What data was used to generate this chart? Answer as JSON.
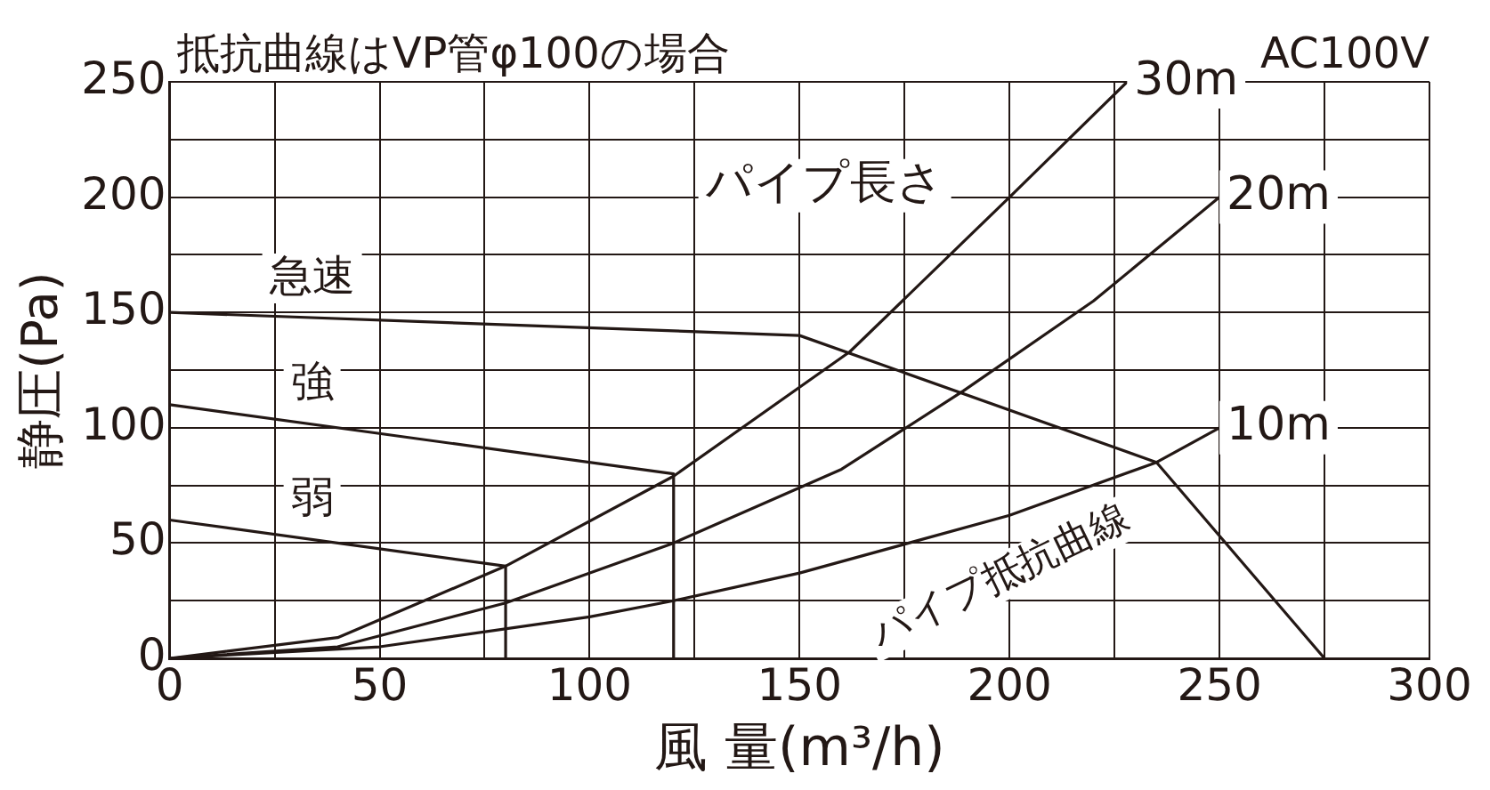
{
  "chart_data": {
    "type": "line",
    "title": "抵抗曲線はVP管φ100の場合",
    "subtitle": "AC100V",
    "xlabel": "風 量(m³/h)",
    "ylabel": "静圧(Pa)",
    "xlim": [
      0,
      300
    ],
    "xticks": [
      0,
      {
        "value": 25,
        "label": null
      },
      50,
      {
        "value": 75,
        "label": null
      },
      100,
      {
        "value": 125,
        "label": null
      },
      150,
      {
        "value": 175,
        "label": null
      },
      200,
      {
        "value": 225,
        "label": null
      },
      250,
      {
        "value": 275,
        "label": null
      },
      300
    ],
    "ylim": [
      0,
      250
    ],
    "yticks": [
      0,
      {
        "value": 25,
        "label": null
      },
      50,
      {
        "value": 75,
        "label": null
      },
      100,
      {
        "value": 125,
        "label": null
      },
      150,
      {
        "value": 175,
        "label": null
      },
      200,
      {
        "value": 225,
        "label": null
      },
      250
    ],
    "grid": true,
    "legend": false,
    "marker": "none",
    "line_style": "solid",
    "series": [
      {
        "name": "急速",
        "color": "#231815",
        "x": [
          0,
          150,
          235,
          275
        ],
        "values": [
          150,
          140,
          85,
          0
        ]
      },
      {
        "name": "強",
        "color": "#231815",
        "x": [
          0,
          120,
          120
        ],
        "values": [
          110,
          80,
          0
        ]
      },
      {
        "name": "弱",
        "color": "#231815",
        "x": [
          0,
          80,
          80
        ],
        "values": [
          60,
          40,
          0
        ]
      },
      {
        "name": "30m",
        "color": "#231815",
        "x": [
          0,
          40,
          80,
          120,
          162,
          200,
          228
        ],
        "values": [
          0,
          9,
          40,
          79,
          133,
          200,
          250
        ]
      },
      {
        "name": "20m",
        "color": "#231815",
        "x": [
          0,
          40,
          80,
          120,
          160,
          189,
          220,
          250
        ],
        "values": [
          0,
          5,
          24,
          50,
          82,
          116,
          155,
          200
        ]
      },
      {
        "name": "10m",
        "color": "#231815",
        "x": [
          0,
          50,
          100,
          120,
          150,
          200,
          235,
          250
        ],
        "values": [
          0,
          5,
          18,
          25,
          37,
          62,
          85,
          100
        ]
      }
    ],
    "annotations": [
      "パイプ長さ",
      "パイプ抵抗曲線"
    ]
  }
}
